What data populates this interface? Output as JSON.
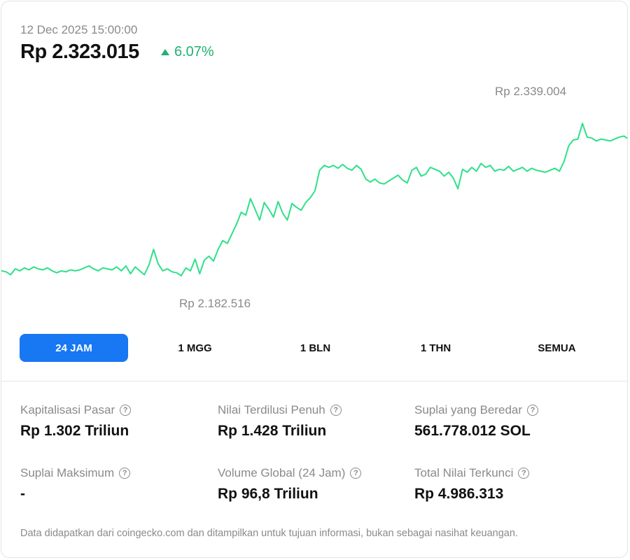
{
  "header": {
    "timestamp": "12 Dec 2025 15:00:00",
    "price": "Rp 2.323.015",
    "change": "6.07%",
    "change_direction": "up"
  },
  "chart_data": {
    "type": "line",
    "high_label": "Rp 2.339.004",
    "low_label": "Rp 2.182.516",
    "line_color": "#2ee08a",
    "ylim": [
      2170000,
      2360000
    ],
    "values": [
      2188000,
      2187000,
      2184000,
      2190000,
      2188000,
      2191000,
      2189000,
      2192000,
      2190000,
      2189000,
      2191000,
      2188000,
      2186000,
      2188000,
      2187000,
      2189000,
      2188000,
      2189000,
      2191000,
      2193000,
      2190000,
      2188000,
      2191000,
      2190000,
      2189000,
      2192000,
      2188000,
      2193000,
      2185000,
      2192000,
      2188000,
      2184000,
      2194000,
      2210000,
      2195000,
      2188000,
      2190000,
      2187000,
      2186000,
      2183000,
      2191000,
      2188000,
      2200000,
      2185000,
      2199000,
      2203000,
      2198000,
      2210000,
      2219000,
      2216000,
      2226000,
      2236000,
      2248000,
      2245000,
      2262000,
      2251000,
      2240000,
      2258000,
      2251000,
      2243000,
      2259000,
      2247000,
      2240000,
      2257000,
      2253000,
      2250000,
      2258000,
      2263000,
      2270000,
      2291000,
      2296000,
      2294000,
      2296000,
      2293000,
      2297000,
      2293000,
      2291000,
      2296000,
      2292000,
      2282000,
      2279000,
      2282000,
      2278000,
      2277000,
      2280000,
      2283000,
      2286000,
      2281000,
      2278000,
      2291000,
      2294000,
      2285000,
      2287000,
      2294000,
      2292000,
      2290000,
      2285000,
      2289000,
      2283000,
      2272000,
      2292000,
      2289000,
      2294000,
      2290000,
      2298000,
      2294000,
      2296000,
      2290000,
      2292000,
      2291000,
      2295000,
      2290000,
      2292000,
      2294000,
      2290000,
      2293000,
      2291000,
      2290000,
      2289000,
      2291000,
      2293000,
      2290000,
      2300000,
      2316000,
      2322000,
      2323000,
      2339000,
      2325000,
      2324000,
      2321000,
      2323000,
      2322000,
      2321000,
      2323000,
      2325000,
      2326000,
      2323000
    ]
  },
  "ranges": [
    {
      "label": "24 JAM",
      "active": true
    },
    {
      "label": "1 MGG",
      "active": false
    },
    {
      "label": "1 BLN",
      "active": false
    },
    {
      "label": "1 THN",
      "active": false
    },
    {
      "label": "SEMUA",
      "active": false
    }
  ],
  "stats": [
    {
      "label": "Kapitalisasi Pasar",
      "value": "Rp 1.302 Triliun"
    },
    {
      "label": "Nilai Terdilusi Penuh",
      "value": "Rp 1.428 Triliun"
    },
    {
      "label": "Suplai yang Beredar",
      "value": "561.778.012 SOL"
    },
    {
      "label": "Suplai Maksimum",
      "value": "-"
    },
    {
      "label": "Volume Global (24 Jam)",
      "value": "Rp 96,8 Triliun"
    },
    {
      "label": "Total Nilai Terkunci",
      "value": "Rp 4.986.313"
    }
  ],
  "help_icon": "question-circle-icon",
  "help_glyph": "?",
  "footer": "Data didapatkan dari coingecko.com dan ditampilkan untuk tujuan informasi, bukan sebagai nasihat keuangan.",
  "colors": {
    "accent": "#1877f2",
    "positive": "#1fb271",
    "muted": "#8a8a8a"
  }
}
